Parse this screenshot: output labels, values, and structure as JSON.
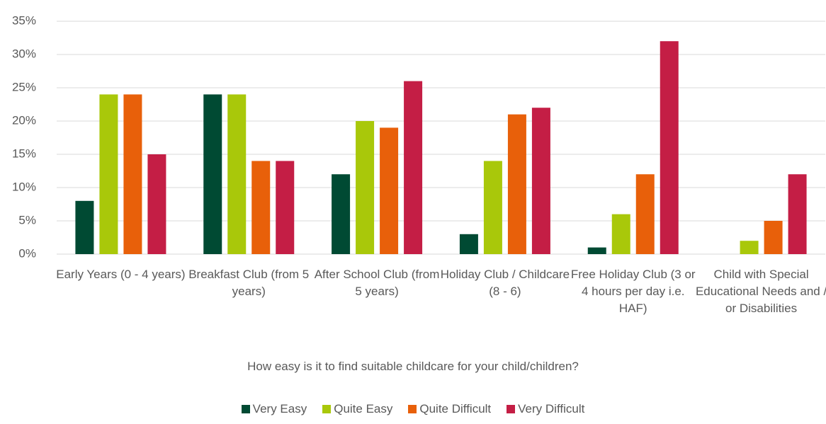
{
  "chart_data": {
    "type": "bar",
    "x_label": "How easy is it to find suitable childcare for your child/children?",
    "categories": [
      "Early Years (0 - 4 years)",
      "Breakfast Club (from 5 years)",
      "After School Club (from 5 years)",
      "Holiday Club / Childcare (8 - 6)",
      "Free Holiday Club (3 or 4 hours per day i.e. HAF)",
      "Child with Special Educational Needs and / or Disabilities"
    ],
    "series": [
      {
        "name": "Very Easy",
        "color": "#004a33",
        "values": [
          8,
          24,
          12,
          3,
          1,
          0
        ]
      },
      {
        "name": "Quite Easy",
        "color": "#a9c80a",
        "values": [
          24,
          24,
          20,
          14,
          6,
          2
        ]
      },
      {
        "name": "Quite Difficult",
        "color": "#e8600a",
        "values": [
          24,
          14,
          19,
          21,
          12,
          5
        ]
      },
      {
        "name": "Very Difficult",
        "color": "#c41e45",
        "values": [
          15,
          14,
          26,
          22,
          32,
          12
        ]
      }
    ],
    "ylim": [
      0,
      35
    ],
    "yticks": [
      {
        "value": 0,
        "label": "0%"
      },
      {
        "value": 5,
        "label": "5%"
      },
      {
        "value": 10,
        "label": "10%"
      },
      {
        "value": 15,
        "label": "15%"
      },
      {
        "value": 20,
        "label": "20%"
      },
      {
        "value": 25,
        "label": "25%"
      },
      {
        "value": 30,
        "label": "30%"
      },
      {
        "value": 35,
        "label": "35%"
      }
    ],
    "grid": true,
    "legend": "bottom"
  }
}
